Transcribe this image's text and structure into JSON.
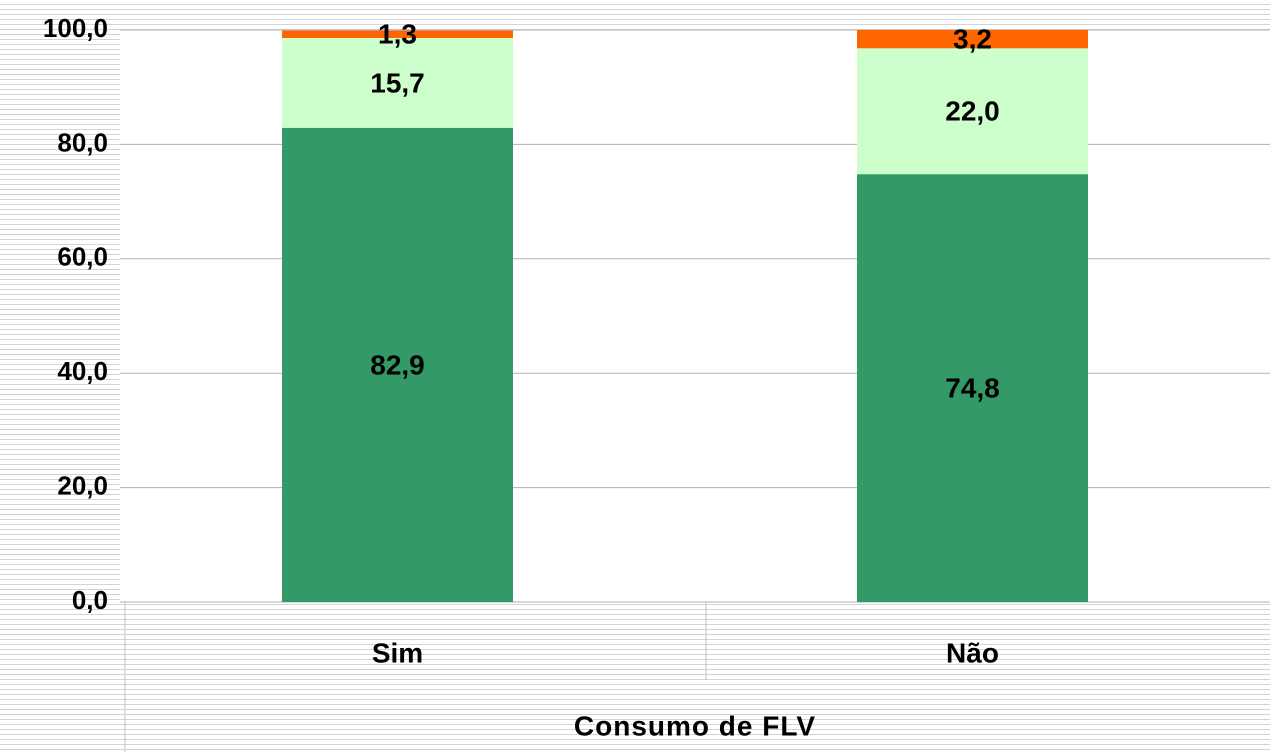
{
  "chart_data": {
    "type": "stacked_bar",
    "x_label": "Consumo de FLV",
    "categories": [
      "Sim",
      "Não"
    ],
    "series": [
      {
        "color": "#339966",
        "values": [
          82.9,
          74.8
        ],
        "value_labels": [
          "82,9",
          "74,8"
        ]
      },
      {
        "color": "#ccffcc",
        "values": [
          15.7,
          22.0
        ],
        "value_labels": [
          "15,7",
          "22,0"
        ]
      },
      {
        "color": "#ff6600",
        "values": [
          1.3,
          3.2
        ],
        "value_labels": [
          "1,3",
          "3,2"
        ]
      }
    ],
    "ylim": [
      0,
      100
    ],
    "yticks": [
      {
        "value": 0,
        "label": "0,0"
      },
      {
        "value": 20,
        "label": "20,0"
      },
      {
        "value": 40,
        "label": "40,0"
      },
      {
        "value": 60,
        "label": "60,0"
      },
      {
        "value": 80,
        "label": "80,0"
      },
      {
        "value": 100,
        "label": "100,0"
      }
    ],
    "grid": true
  }
}
